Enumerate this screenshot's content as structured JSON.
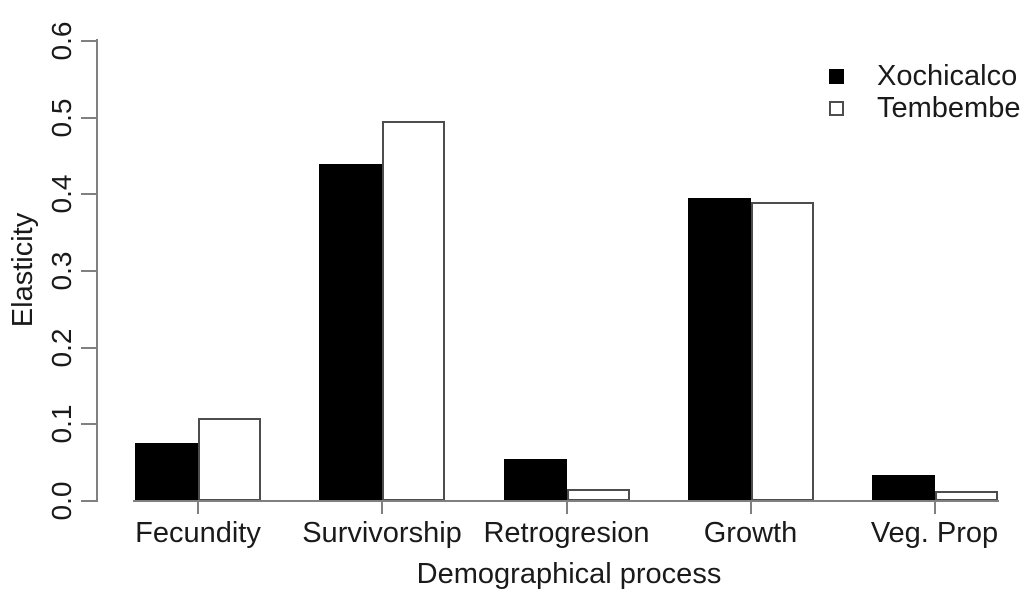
{
  "chart_data": {
    "type": "bar",
    "title": "",
    "xlabel": "Demographical process",
    "ylabel": "Elasticity",
    "categories": [
      "Fecundity",
      "Survivorship",
      "Retrogresion",
      "Growth",
      "Veg. Prop"
    ],
    "series": [
      {
        "name": "Xochicalco",
        "fill": "#000000",
        "border": "#000000",
        "values": [
          0.075,
          0.44,
          0.055,
          0.395,
          0.034
        ]
      },
      {
        "name": "Tembembe",
        "fill": "#ffffff",
        "border": "#4d4d4d",
        "values": [
          0.108,
          0.495,
          0.015,
          0.39,
          0.013
        ]
      }
    ],
    "ylim": [
      0.0,
      0.6
    ],
    "ytick_labels": [
      "0.0",
      "0.1",
      "0.2",
      "0.3",
      "0.4",
      "0.5",
      "0.6"
    ],
    "grid": false,
    "legend_position": "top-right",
    "axis_color": "#808080",
    "background_color": "#ffffff"
  }
}
